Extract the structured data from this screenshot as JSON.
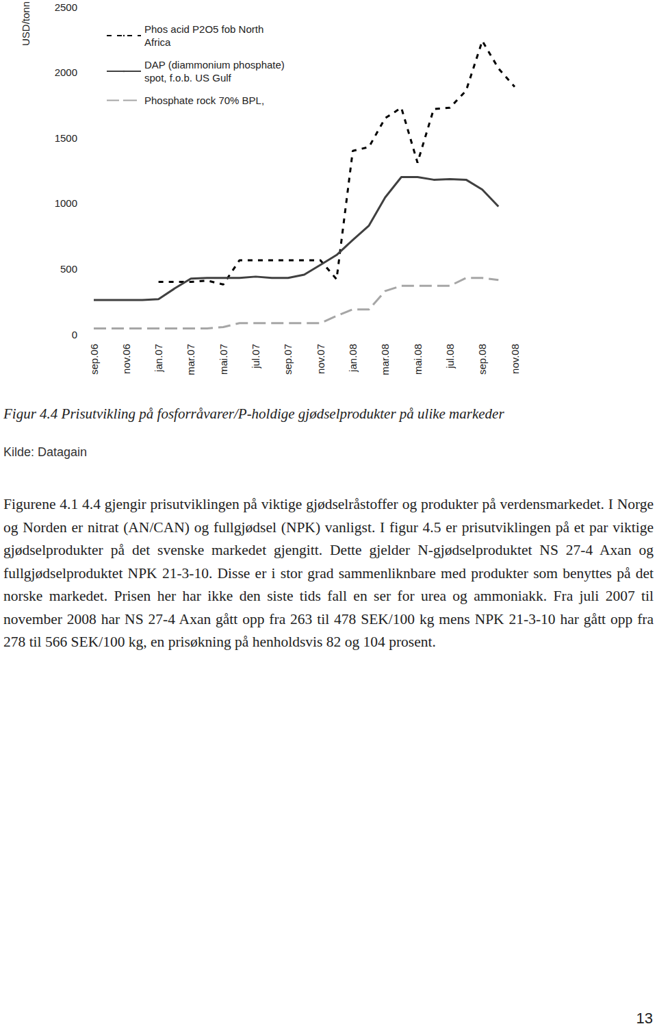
{
  "chart_data": {
    "type": "line",
    "y_label": "USD/tonn",
    "categories": [
      "sep.06",
      null,
      "nov.06",
      null,
      "jan.07",
      null,
      "mar.07",
      null,
      "mai.07",
      null,
      "jul.07",
      null,
      "sep.07",
      null,
      "nov.07",
      null,
      "jan.08",
      null,
      "mar.08",
      null,
      "mai.08",
      null,
      "jul.08",
      null,
      "sep.08",
      null,
      "nov.08"
    ],
    "series": [
      {
        "name": "Phos acid P2O5 fob North Africa",
        "color": "#000000",
        "line_style": "dashed",
        "values": [
          null,
          null,
          null,
          null,
          400,
          400,
          400,
          410,
          380,
          565,
          565,
          565,
          565,
          565,
          565,
          420,
          1400,
          1430,
          1650,
          1730,
          1310,
          1720,
          1730,
          1860,
          2240,
          2030,
          1890
        ]
      },
      {
        "name": "DAP (diammonium phosphate) spot, f.o.b. US Gulf",
        "color": "#404040",
        "line_style": "solid",
        "values": [
          262,
          262,
          262,
          262,
          268,
          350,
          425,
          430,
          430,
          430,
          440,
          430,
          430,
          455,
          530,
          605,
          720,
          830,
          1045,
          1200,
          1200,
          1180,
          1185,
          1180,
          1105,
          975,
          null
        ]
      },
      {
        "name": "Phosphate rock 70% BPL,",
        "color": "#a6a6a6",
        "line_style": "long_dashed",
        "values": [
          45,
          45,
          45,
          45,
          45,
          45,
          45,
          45,
          55,
          85,
          85,
          85,
          85,
          85,
          85,
          140,
          190,
          190,
          330,
          370,
          370,
          370,
          370,
          430,
          430,
          415,
          null
        ]
      }
    ],
    "ylim": [
      0,
      2500
    ],
    "yticks": [
      0,
      500,
      1000,
      1500,
      2000,
      2500
    ],
    "grid": false,
    "legend": "upper left"
  },
  "caption": "Figur 4.4 Prisutvikling på fosforråvarer/P-holdige gjødselprodukter på ulike markeder",
  "source": "Kilde: Datagain",
  "body": "Figurene 4.1 4.4 gjengir prisutviklingen på viktige gjødselråstoffer og produkter på verdensmarkedet. I Norge og Norden er nitrat (AN/CAN) og fullgjødsel (NPK) vanligst. I figur 4.5 er prisutviklingen på et par viktige gjødselprodukter på det svenske markedet gjengitt. Dette gjelder N-gjødselproduktet NS 27-4 Axan og fullgjødselproduktet NPK 21-3-10. Disse er i stor grad sammenliknbare med produkter som benyttes på det norske markedet. Prisen her har ikke den siste tids fall en ser for urea og ammoniakk. Fra juli 2007 til november 2008 har NS 27-4 Axan gått opp fra 263 til 478 SEK/100 kg mens NPK 21-3-10 har gått opp fra 278 til 566 SEK/100 kg, en prisøkning på henholdsvis 82 og 104 prosent.",
  "page_number": "13"
}
